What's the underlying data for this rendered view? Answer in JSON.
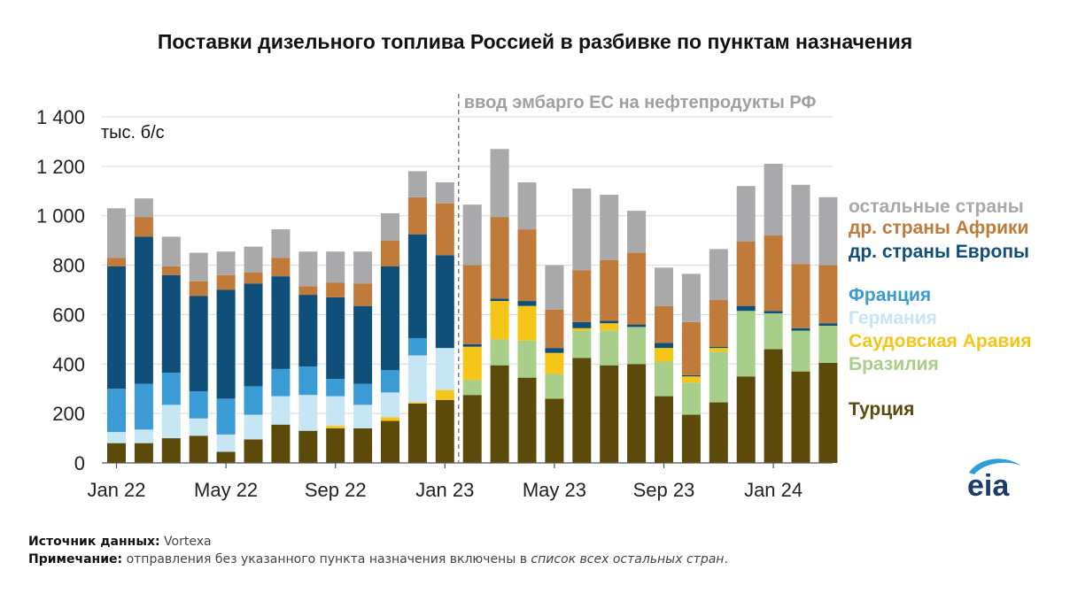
{
  "chart_data": {
    "type": "bar",
    "stacked": true,
    "title": "Поставки дизельного топлива Россией в разбивке по пунктам назначения",
    "unit_label": "тыс. б/с",
    "ylim": [
      0,
      1400
    ],
    "yticks": [
      0,
      200,
      400,
      600,
      800,
      1000,
      1200,
      1400
    ],
    "ytick_labels": [
      "0",
      "200",
      "400",
      "600",
      "800",
      "1 000",
      "1 200",
      "1 400"
    ],
    "grid": true,
    "x": [
      "Jan 22",
      "Feb 22",
      "Mar 22",
      "Apr 22",
      "May 22",
      "Jun 22",
      "Jul 22",
      "Aug 22",
      "Sep 22",
      "Oct 22",
      "Nov 22",
      "Dec 22",
      "Jan 23",
      "Feb 23",
      "Mar 23",
      "Apr 23",
      "May 23",
      "Jun 23",
      "Jul 23",
      "Aug 23",
      "Sep 23",
      "Oct 23",
      "Nov 23",
      "Dec 23",
      "Jan 24",
      "Feb 24",
      "Mar 24"
    ],
    "xtick_labels": [
      {
        "index": 0,
        "label": "Jan 22"
      },
      {
        "index": 4,
        "label": "May 22"
      },
      {
        "index": 8,
        "label": "Sep 22"
      },
      {
        "index": 12,
        "label": "Jan 23"
      },
      {
        "index": 16,
        "label": "May 23"
      },
      {
        "index": 20,
        "label": "Sep 23"
      },
      {
        "index": 24,
        "label": "Jan 24"
      }
    ],
    "annotation": {
      "text": "ввод эмбарго ЕС на нефтепродукты РФ",
      "between_index": [
        12,
        13
      ]
    },
    "legend_placement": "right",
    "series": [
      {
        "name": "Турция",
        "color": "#5c4a0a",
        "values": [
          80,
          80,
          100,
          110,
          45,
          95,
          155,
          130,
          140,
          140,
          170,
          240,
          255,
          275,
          395,
          345,
          260,
          425,
          395,
          400,
          270,
          195,
          245,
          350,
          460,
          370,
          405
        ]
      },
      {
        "name": "Бразилия",
        "color": "#a8cf8a",
        "values": [
          0,
          0,
          0,
          0,
          0,
          0,
          0,
          0,
          0,
          0,
          0,
          0,
          0,
          60,
          105,
          150,
          100,
          110,
          140,
          150,
          140,
          130,
          205,
          265,
          145,
          165,
          150
        ]
      },
      {
        "name": "Саудовская Аравия",
        "color": "#f5c518",
        "values": [
          0,
          0,
          0,
          0,
          0,
          0,
          0,
          0,
          10,
          0,
          15,
          5,
          40,
          135,
          155,
          140,
          85,
          10,
          30,
          0,
          55,
          25,
          15,
          0,
          0,
          0,
          0
        ]
      },
      {
        "name": "Германия",
        "color": "#c6e6f3",
        "values": [
          45,
          55,
          135,
          70,
          70,
          100,
          115,
          145,
          120,
          95,
          100,
          190,
          170,
          0,
          0,
          0,
          0,
          0,
          0,
          0,
          0,
          0,
          0,
          0,
          0,
          0,
          0
        ]
      },
      {
        "name": "Франция",
        "color": "#3a9bd5",
        "values": [
          175,
          185,
          130,
          110,
          145,
          115,
          110,
          115,
          70,
          85,
          90,
          70,
          0,
          0,
          0,
          0,
          0,
          0,
          0,
          0,
          0,
          0,
          0,
          0,
          0,
          0,
          0
        ]
      },
      {
        "name": "др. страны Европы",
        "color": "#0f4f7a",
        "values": [
          495,
          595,
          395,
          385,
          440,
          415,
          375,
          290,
          330,
          315,
          420,
          420,
          375,
          10,
          10,
          20,
          20,
          25,
          10,
          10,
          20,
          5,
          5,
          20,
          10,
          10,
          10
        ]
      },
      {
        "name": "др. страны Африки",
        "color": "#c07a3a",
        "values": [
          35,
          80,
          35,
          60,
          60,
          45,
          75,
          35,
          60,
          90,
          105,
          150,
          210,
          320,
          330,
          290,
          155,
          210,
          245,
          290,
          150,
          215,
          190,
          260,
          305,
          260,
          235
        ]
      },
      {
        "name": "остальные страны",
        "color": "#a9a9ac",
        "values": [
          200,
          75,
          120,
          115,
          95,
          105,
          115,
          140,
          125,
          130,
          110,
          105,
          85,
          245,
          275,
          190,
          180,
          330,
          265,
          170,
          155,
          195,
          205,
          225,
          290,
          320,
          275
        ]
      }
    ]
  },
  "footer": {
    "source_label": "Источник данных:",
    "source_value": " Vortexa",
    "note_label": "Примечание:",
    "note_value": " отправления без указанного пункта назначения включены в ",
    "note_italic": "список всех остальных стран",
    "note_end": "."
  },
  "logo": {
    "text": "eia",
    "color": "#1a3d6e",
    "swoosh_color": "#2a9fd8"
  }
}
